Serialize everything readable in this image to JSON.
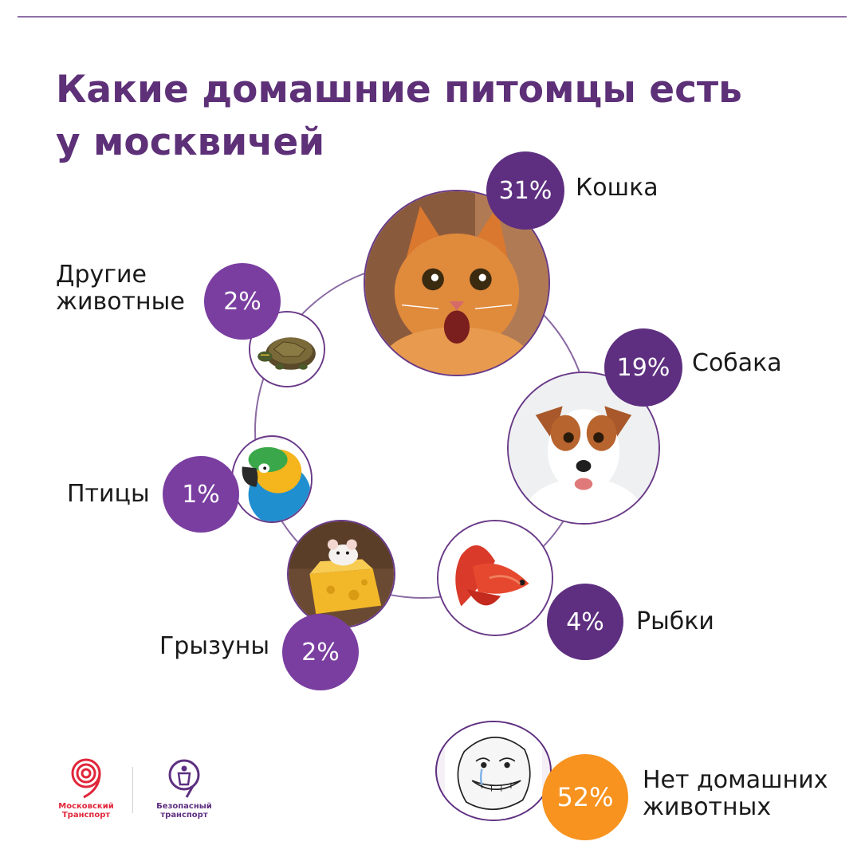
{
  "title": "Какие домашние питомцы есть у москвичей",
  "chart_data": {
    "type": "bubble",
    "title": "Какие домашние питомцы есть у москвичей",
    "unit": "%",
    "categories": [
      "Кошка",
      "Собака",
      "Рыбки",
      "Грызуны",
      "Птицы",
      "Другие животные",
      "Нет домашних животных"
    ],
    "values": [
      31,
      19,
      4,
      2,
      1,
      2,
      52
    ],
    "value_labels": [
      "31%",
      "19%",
      "4%",
      "2%",
      "1%",
      "2%",
      "52%"
    ],
    "icons": [
      "cat-photo",
      "dog-photo",
      "fish-photo",
      "mouse-photo",
      "parrot-photo",
      "turtle-photo",
      "forever-alone-face"
    ],
    "colors": {
      "title": "#5d3078",
      "badge": "#7a3ea0",
      "badge_dark": "#5e2f80",
      "badge_highlight": "#f7931e",
      "ring": "#6a3a88"
    }
  },
  "logos": {
    "left": "Московский\nТранспорт",
    "right": "Безопасный\nтранспорт"
  }
}
